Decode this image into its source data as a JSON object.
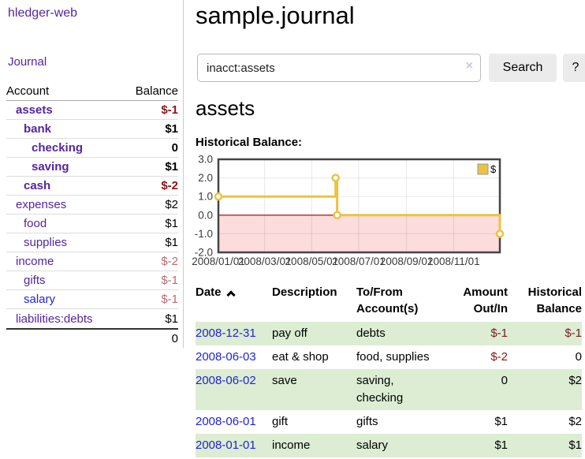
{
  "brand": "hledger-web",
  "nav": {
    "journal": "Journal"
  },
  "page": {
    "title": "sample.journal",
    "account_heading": "assets",
    "chart_title": "Historical Balance:"
  },
  "search": {
    "value": "inacct:assets",
    "clear_icon": "×",
    "search_button": "Search",
    "help_button": "?"
  },
  "sidebar": {
    "columns": {
      "account": "Account",
      "balance": "Balance"
    },
    "accounts": [
      {
        "name": "assets",
        "depth": 0,
        "balance": "$-1",
        "bold": true,
        "neg": "strong"
      },
      {
        "name": "bank",
        "depth": 1,
        "balance": "$1",
        "bold": true
      },
      {
        "name": "checking",
        "depth": 2,
        "balance": "0",
        "bold": true
      },
      {
        "name": "saving",
        "depth": 2,
        "balance": "$1",
        "bold": true
      },
      {
        "name": "cash",
        "depth": 1,
        "balance": "$-2",
        "bold": true,
        "neg": "strong"
      },
      {
        "name": "expenses",
        "depth": 0,
        "balance": "$2"
      },
      {
        "name": "food",
        "depth": 1,
        "balance": "$1"
      },
      {
        "name": "supplies",
        "depth": 1,
        "balance": "$1"
      },
      {
        "name": "income",
        "depth": 0,
        "balance": "$-2",
        "neg": "muted"
      },
      {
        "name": "gifts",
        "depth": 1,
        "balance": "$-1",
        "neg": "muted"
      },
      {
        "name": "salary",
        "depth": 1,
        "balance": "$-1",
        "neg": "muted",
        "blue": true
      },
      {
        "name": "liabilities:debts",
        "depth": 0,
        "balance": "$1"
      }
    ],
    "total": "0"
  },
  "register": {
    "columns": [
      "Date",
      "Description",
      "To/From\nAccount(s)",
      "Amount\nOut/In",
      "Historical\nBalance"
    ],
    "sort_indicator": "ascending",
    "rows": [
      {
        "date": "2008-12-31",
        "description": "pay off",
        "accounts": "debts",
        "amount": "$-1",
        "amount_neg": true,
        "balance": "$-1",
        "balance_neg": true,
        "highlight": true
      },
      {
        "date": "2008-06-03",
        "description": "eat & shop",
        "accounts": "food, supplies",
        "amount": "$-2",
        "amount_neg": true,
        "balance": "0"
      },
      {
        "date": "2008-06-02",
        "description": "save",
        "accounts": "saving,\nchecking",
        "amount": "0",
        "balance": "$2",
        "highlight": true
      },
      {
        "date": "2008-06-01",
        "description": "gift",
        "accounts": "gifts",
        "amount": "$1",
        "balance": "$2"
      },
      {
        "date": "2008-01-01",
        "description": "income",
        "accounts": "salary",
        "amount": "$1",
        "balance": "$1",
        "highlight": true
      }
    ]
  },
  "chart_data": {
    "type": "line",
    "step": true,
    "title": "Historical Balance",
    "series": [
      {
        "name": "$",
        "color": "#edc240",
        "points": [
          [
            "2008-01-01",
            1
          ],
          [
            "2008-06-01",
            2
          ],
          [
            "2008-06-03",
            0
          ],
          [
            "2008-12-31",
            -1
          ]
        ]
      }
    ],
    "x_range": [
      "2008-01-01",
      "2008-12-31"
    ],
    "x_ticks": [
      {
        "date": "2008-01-01",
        "label": "2008/01/01"
      },
      {
        "date": "2008-03-01",
        "label": "2008/03/01"
      },
      {
        "date": "2008-05-01",
        "label": "2008/05/01"
      },
      {
        "date": "2008-07-01",
        "label": "2008/07/01"
      },
      {
        "date": "2008-09-01",
        "label": "2008/09/01"
      },
      {
        "date": "2008-11-01",
        "label": "2008/11/01"
      }
    ],
    "y_ticks": [
      {
        "v": 3,
        "label": "3.0"
      },
      {
        "v": 2,
        "label": "2.0"
      },
      {
        "v": 1,
        "label": "1.0"
      },
      {
        "v": 0,
        "label": "0.0"
      },
      {
        "v": -1,
        "label": "-1.0"
      },
      {
        "v": -2,
        "label": "-2.0"
      }
    ],
    "ylim": [
      -2,
      3
    ],
    "grid": true,
    "legend": {
      "label": "$",
      "position": "top-right"
    },
    "negative_region_color": "#fcdcdc",
    "zero_line_color": "#8b0000"
  },
  "colors": {
    "accent_purple": "#54269e",
    "link_blue": "#2323d1",
    "negative_strong": "#8c1414",
    "negative_muted": "#bb6a6e",
    "table_negative": "#7d1a1a",
    "row_highlight_green": "#dcedd3",
    "series_gold": "#edc240",
    "chart_negative_region": "#fcdcdc",
    "chart_zero_line": "#8b0000",
    "button_gray": "#ebebeb"
  }
}
